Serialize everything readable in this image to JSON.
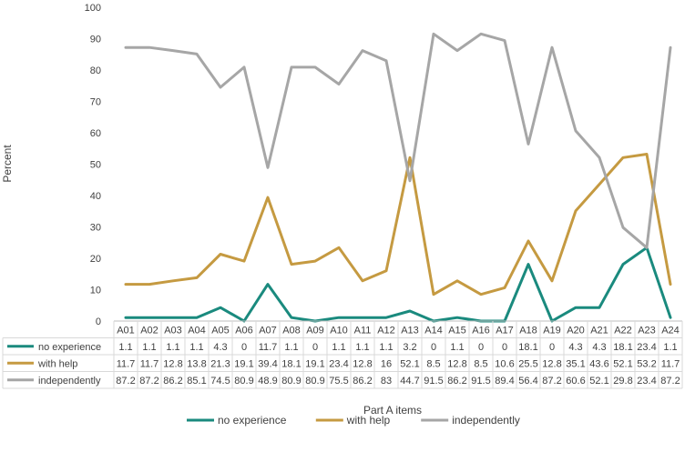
{
  "chart_data": {
    "type": "line",
    "title": "",
    "ylabel": "Percent",
    "xlabel": "Part A items",
    "ylim": [
      0,
      100
    ],
    "yticks": [
      0,
      10,
      20,
      30,
      40,
      50,
      60,
      70,
      80,
      90,
      100
    ],
    "grid": false,
    "legend_position": "bottom",
    "data_table": true,
    "categories": [
      "A01",
      "A02",
      "A03",
      "A04",
      "A05",
      "A06",
      "A07",
      "A08",
      "A09",
      "A10",
      "A11",
      "A12",
      "A13",
      "A14",
      "A15",
      "A16",
      "A17",
      "A18",
      "A19",
      "A20",
      "A21",
      "A22",
      "A23",
      "A24"
    ],
    "series": [
      {
        "name": "no experience",
        "color": "#1a8a7e",
        "values": [
          1.1,
          1.1,
          1.1,
          1.1,
          4.3,
          0,
          11.7,
          1.1,
          0,
          1.1,
          1.1,
          1.1,
          3.2,
          0,
          1.1,
          0,
          0,
          18.1,
          0,
          4.3,
          4.3,
          18.1,
          23.4,
          1.1
        ]
      },
      {
        "name": "with help",
        "color": "#c59a41",
        "values": [
          11.7,
          11.7,
          12.8,
          13.8,
          21.3,
          19.1,
          39.4,
          18.1,
          19.1,
          23.4,
          12.8,
          16,
          52.1,
          8.5,
          12.8,
          8.5,
          10.6,
          25.5,
          12.8,
          35.1,
          43.6,
          52.1,
          53.2,
          11.7
        ]
      },
      {
        "name": "independently",
        "color": "#a6a6a6",
        "values": [
          87.2,
          87.2,
          86.2,
          85.1,
          74.5,
          80.9,
          48.9,
          80.9,
          80.9,
          75.5,
          86.2,
          83,
          44.7,
          91.5,
          86.2,
          91.5,
          89.4,
          56.4,
          87.2,
          60.6,
          52.1,
          29.8,
          23.4,
          87.2
        ]
      }
    ]
  }
}
